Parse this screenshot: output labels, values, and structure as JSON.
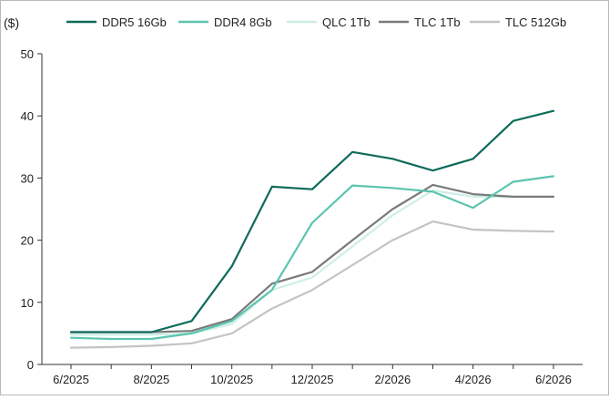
{
  "chart_data": {
    "type": "line",
    "unit_label": "($)",
    "x": [
      "6/2025",
      "7/2025",
      "8/2025",
      "9/2025",
      "10/2025",
      "11/2025",
      "12/2025",
      "1/2026",
      "2/2026",
      "3/2026",
      "4/2026",
      "5/2026",
      "6/2026"
    ],
    "x_tick_labels": [
      "6/2025",
      "8/2025",
      "10/2025",
      "12/2025",
      "2/2026",
      "4/2026",
      "6/2026"
    ],
    "ylim": [
      0,
      50
    ],
    "y_ticks": [
      0,
      10,
      20,
      30,
      40,
      50
    ],
    "grid": false,
    "legend_position": "top",
    "series": [
      {
        "name": "DDR5 16Gb",
        "color": "#0e6b5b",
        "values": [
          5.2,
          5.2,
          5.2,
          7.0,
          15.8,
          28.6,
          28.2,
          34.2,
          33.1,
          31.2,
          33.1,
          39.2,
          40.8
        ]
      },
      {
        "name": "DDR4 8Gb",
        "color": "#5cc4b0",
        "values": [
          4.3,
          4.1,
          4.1,
          5.0,
          7.0,
          12.0,
          22.8,
          28.8,
          28.4,
          27.8,
          25.2,
          29.4,
          30.3
        ]
      },
      {
        "name": "QLC 1Tb",
        "color": "#cdeee6",
        "values": [
          4.8,
          4.8,
          4.8,
          5.0,
          6.5,
          12.0,
          14.0,
          19.0,
          24.0,
          28.0,
          27.0,
          27.0,
          27.0
        ]
      },
      {
        "name": "TLC 1Tb",
        "color": "#7a7a7a",
        "values": [
          5.2,
          5.2,
          5.2,
          5.4,
          7.3,
          13.0,
          14.9,
          20.0,
          25.0,
          28.9,
          27.4,
          27.0,
          27.0
        ]
      },
      {
        "name": "TLC 512Gb",
        "color": "#c4c4c4",
        "values": [
          2.7,
          2.8,
          3.0,
          3.4,
          5.0,
          9.0,
          12.0,
          16.0,
          20.0,
          23.0,
          21.7,
          21.5,
          21.4
        ]
      }
    ]
  }
}
